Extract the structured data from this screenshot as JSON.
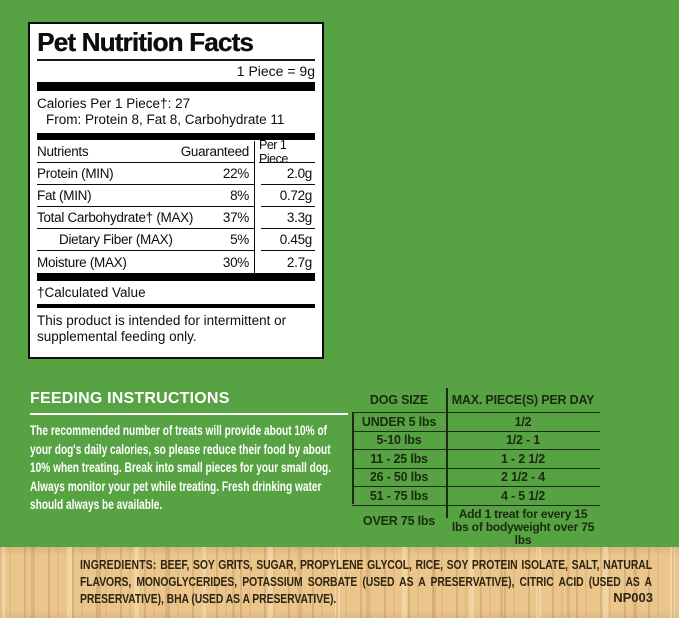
{
  "colors": {
    "background_green": "#57a243",
    "panel_background": "#ffffff",
    "panel_text": "#0d0d0d",
    "feeding_text": "#ffffff",
    "dog_table_text": "#1b2a10",
    "wood_background": "#ebc68c",
    "ingredients_text": "#2e2410"
  },
  "nutrition_panel": {
    "title": "Pet Nutrition Facts",
    "serving": "1 Piece = 9g",
    "calories_line": "Calories Per 1 Piece†: 27",
    "calories_from": "From: Protein 8, Fat 8, Carbohydrate 11",
    "table": {
      "header_nutrients": "Nutrients",
      "header_guaranteed": "Guaranteed",
      "header_per_piece": "Per 1 Piece",
      "rows": [
        {
          "name": "Protein (MIN)",
          "guaranteed": "22%",
          "per_piece": "2.0g"
        },
        {
          "name": "Fat (MIN)",
          "guaranteed": "8%",
          "per_piece": "0.72g"
        },
        {
          "name": "Total Carbohydrate†  (MAX)",
          "guaranteed": "37%",
          "per_piece": "3.3g"
        },
        {
          "name": "Dietary Fiber (MAX)",
          "guaranteed": "5%",
          "per_piece": "0.45g"
        },
        {
          "name": "Moisture (MAX)",
          "guaranteed": "30%",
          "per_piece": "2.7g"
        }
      ]
    },
    "footnote": "†Calculated Value",
    "disclaimer": "This product is intended for intermittent or supplemental feeding only."
  },
  "feeding": {
    "title": "FEEDING INSTRUCTIONS",
    "body": "The recommended number of treats will provide about 10% of your dog's daily calories, so please reduce their food by about 10% when treating. Break into small pieces for your small dog. Always monitor your pet while treating. Fresh drinking water should always be available."
  },
  "dog_table": {
    "header_size": "DOG SIZE",
    "header_max": "MAX. PIECE(S) PER DAY",
    "rows": [
      {
        "size": "UNDER 5 lbs",
        "max": "1/2"
      },
      {
        "size": "5-10 lbs",
        "max": "1/2 - 1"
      },
      {
        "size": "11 - 25 lbs",
        "max": "1 - 2 1/2"
      },
      {
        "size": "26 - 50 lbs",
        "max": "2 1/2 - 4"
      },
      {
        "size": "51 - 75 lbs",
        "max": "4 - 5 1/2"
      },
      {
        "size": "OVER 75 lbs",
        "max": "Add 1 treat for every 15 lbs of bodyweight over 75 lbs"
      }
    ]
  },
  "ingredients": {
    "label": "INGREDIENTS:",
    "text": "BEEF, SOY GRITS, SUGAR, PROPYLENE GLYCOL, RICE, SOY PROTEIN ISOLATE, SALT, NATURAL FLAVORS, MONOGLYCERIDES, POTASSIUM SORBATE (USED AS A PRESERVATIVE), CITRIC ACID (USED AS A PRESERVATIVE), BHA (USED AS A PRESERVATIVE).",
    "code": "NP003"
  }
}
